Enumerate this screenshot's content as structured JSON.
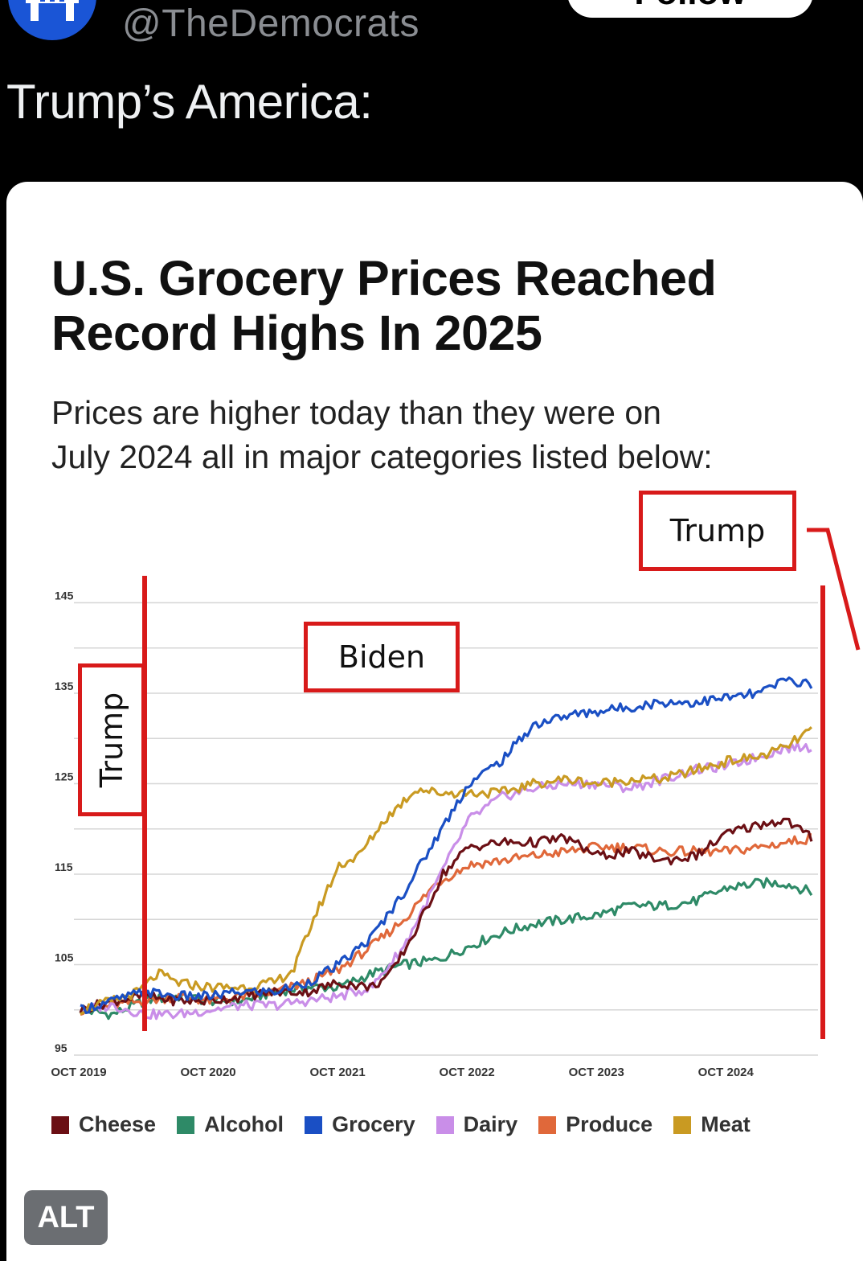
{
  "post": {
    "handle": "@TheDemocrats",
    "follow_label": "Follow",
    "text": "Trump’s America:",
    "alt_badge": "ALT"
  },
  "image": {
    "title_line1": "U.S. Grocery Prices Reached",
    "title_line2": "Record Highs In 2025",
    "subtitle_line1": "Prices are higher today than they were on",
    "subtitle_line2": "July 2024 all in major categories listed below:",
    "annotations": {
      "trump_left": "Trump",
      "biden": "Biden",
      "trump_right": "Trump"
    }
  },
  "chart_data": {
    "type": "line",
    "ylim": [
      95,
      147
    ],
    "y_ticks": [
      95,
      105,
      115,
      125,
      135,
      145
    ],
    "x_ticks": [
      "OCT 2019",
      "OCT 2020",
      "OCT 2021",
      "OCT 2022",
      "OCT 2023",
      "OCT 2024"
    ],
    "x_range": [
      2019.75,
      2025.45
    ],
    "grid": true,
    "legend_position": "bottom",
    "series": [
      {
        "name": "Cheese",
        "color": "#6b0f14",
        "x": [
          2019.75,
          2020.0,
          2020.25,
          2020.5,
          2020.75,
          2021.0,
          2021.25,
          2021.5,
          2021.75,
          2022.0,
          2022.15,
          2022.35,
          2022.55,
          2022.75,
          2023.0,
          2023.25,
          2023.5,
          2023.75,
          2024.0,
          2024.25,
          2024.5,
          2024.75,
          2025.0,
          2025.2,
          2025.4
        ],
        "y": [
          100,
          101,
          101.5,
          101,
          101,
          101.5,
          102,
          102,
          103,
          102.5,
          104,
          109,
          115,
          118,
          118.5,
          118.5,
          119,
          117,
          117.5,
          116.5,
          117,
          119.5,
          120.5,
          121,
          119
        ]
      },
      {
        "name": "Alcohol",
        "color": "#2e8a67",
        "x": [
          2019.75,
          2020.0,
          2020.25,
          2020.5,
          2020.75,
          2021.0,
          2021.25,
          2021.5,
          2021.75,
          2022.0,
          2022.25,
          2022.5,
          2022.75,
          2023.0,
          2023.25,
          2023.5,
          2023.75,
          2024.0,
          2024.25,
          2024.5,
          2024.75,
          2025.0,
          2025.2,
          2025.4
        ],
        "y": [
          100,
          99.5,
          101,
          101.5,
          101,
          101,
          102,
          102.5,
          102.5,
          104,
          105,
          105.5,
          107,
          108.5,
          109.5,
          110,
          110.5,
          111.5,
          111.5,
          112,
          113.5,
          114,
          114,
          113
        ]
      },
      {
        "name": "Grocery",
        "color": "#1a4fc4",
        "x": [
          2019.75,
          2020.0,
          2020.25,
          2020.5,
          2020.75,
          2021.0,
          2021.25,
          2021.5,
          2021.75,
          2022.0,
          2022.25,
          2022.5,
          2022.75,
          2023.0,
          2023.25,
          2023.5,
          2023.75,
          2024.0,
          2024.25,
          2024.5,
          2024.75,
          2025.0,
          2025.2,
          2025.4
        ],
        "y": [
          100,
          101,
          102,
          101.5,
          101.5,
          102,
          102,
          103,
          105,
          108,
          113,
          119,
          125,
          127.5,
          131.5,
          132.5,
          133,
          133.5,
          134,
          134,
          134.5,
          135,
          136.5,
          136
        ]
      },
      {
        "name": "Dairy",
        "color": "#c98ee8",
        "x": [
          2019.75,
          2020.0,
          2020.25,
          2020.5,
          2020.75,
          2021.0,
          2021.25,
          2021.5,
          2021.75,
          2022.0,
          2022.25,
          2022.5,
          2022.75,
          2023.0,
          2023.25,
          2023.5,
          2023.75,
          2024.0,
          2024.25,
          2024.5,
          2024.75,
          2025.0,
          2025.2,
          2025.4
        ],
        "y": [
          100,
          100.5,
          99.5,
          99.5,
          100,
          100.5,
          100.5,
          101,
          101.5,
          102.5,
          107,
          114,
          121,
          123.5,
          124.5,
          125,
          125,
          124.5,
          125.5,
          126.5,
          127,
          128,
          129,
          129
        ]
      },
      {
        "name": "Produce",
        "color": "#e0683a",
        "x": [
          2019.75,
          2020.0,
          2020.25,
          2020.5,
          2020.75,
          2021.0,
          2021.25,
          2021.5,
          2021.75,
          2022.0,
          2022.25,
          2022.5,
          2022.75,
          2023.0,
          2023.25,
          2023.5,
          2023.75,
          2024.0,
          2024.25,
          2024.5,
          2024.75,
          2025.0,
          2025.2,
          2025.4
        ],
        "y": [
          100,
          100.5,
          101,
          101.5,
          101,
          101.5,
          102,
          103,
          104.5,
          107,
          110,
          114,
          116,
          116.5,
          117,
          117.5,
          118,
          118,
          117.5,
          117.5,
          117.5,
          118,
          118.5,
          119
        ]
      },
      {
        "name": "Meat",
        "color": "#c99a22",
        "x": [
          2019.75,
          2020.0,
          2020.2,
          2020.35,
          2020.5,
          2020.75,
          2021.0,
          2021.25,
          2021.4,
          2021.55,
          2021.75,
          2021.9,
          2022.1,
          2022.35,
          2022.5,
          2022.75,
          2023.0,
          2023.25,
          2023.5,
          2023.75,
          2024.0,
          2024.25,
          2024.5,
          2024.75,
          2025.0,
          2025.2,
          2025.4
        ],
        "y": [
          100,
          101,
          102,
          104,
          103,
          102.5,
          102.5,
          103,
          104.5,
          110,
          116,
          117,
          121,
          124.5,
          124,
          124,
          124,
          125,
          125.5,
          125,
          125.5,
          125.5,
          126.5,
          127.5,
          128,
          129,
          131
        ]
      }
    ]
  }
}
